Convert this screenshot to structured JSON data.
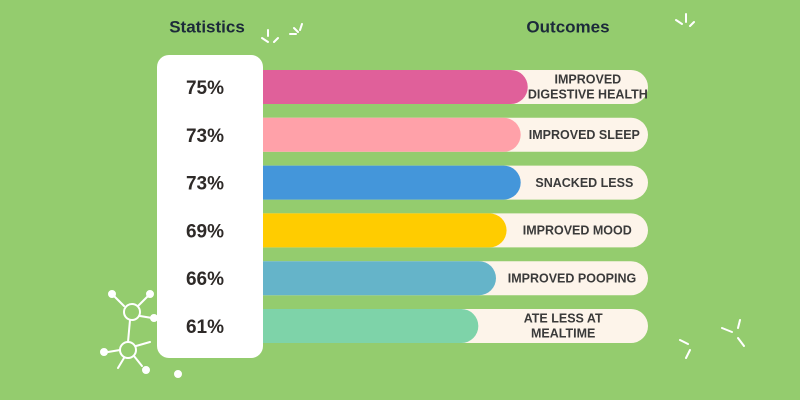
{
  "chart_data": {
    "type": "bar",
    "stat_header": "Statistics",
    "label_header": "Outcomes",
    "categories": [
      "IMPROVED\nDIGESTIVE HEALTH",
      "IMPROVED SLEEP",
      "SNACKED LESS",
      "IMPROVED MOOD",
      "IMPROVED POOPING",
      "ATE LESS AT\nMEALTIME"
    ],
    "values": [
      75,
      73,
      73,
      69,
      66,
      61
    ],
    "value_labels": [
      "75%",
      "73%",
      "73%",
      "69%",
      "66%",
      "61%"
    ],
    "colors": [
      "#e0609a",
      "#ffa1a9",
      "#4496da",
      "#ffcc00",
      "#65b4c9",
      "#7ed3a9"
    ]
  }
}
